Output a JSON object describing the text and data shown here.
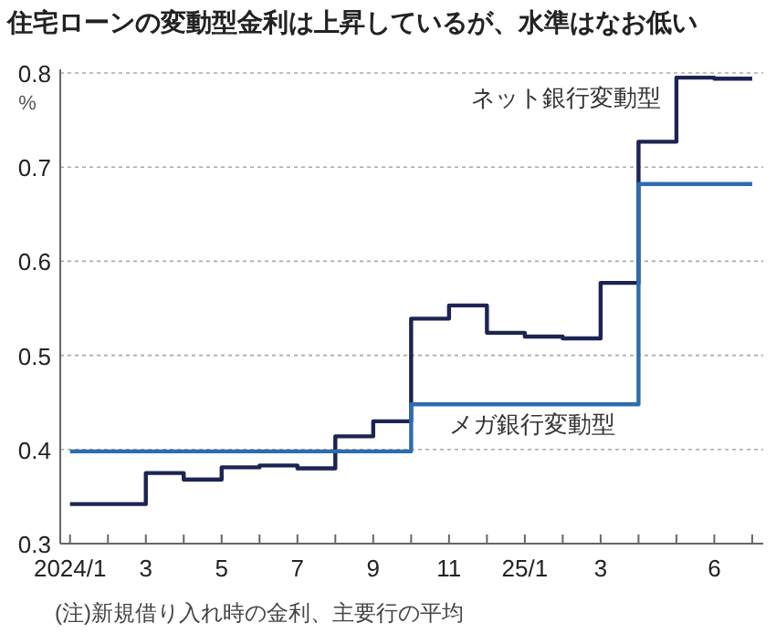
{
  "chart_data": {
    "type": "step",
    "title": "住宅ローンの変動型金利は上昇しているが、水準はなお低い",
    "ylabel": "%",
    "x": [
      "2024-01",
      "2024-02",
      "2024-03",
      "2024-04",
      "2024-05",
      "2024-06",
      "2024-07",
      "2024-08",
      "2024-09",
      "2024-10",
      "2024-11",
      "2024-12",
      "2025-01",
      "2025-02",
      "2025-03",
      "2025-04",
      "2025-05",
      "2025-06",
      "2025-07"
    ],
    "series": [
      {
        "name": "ネット銀行変動型",
        "color": "#1b2452",
        "values": [
          0.342,
          0.342,
          0.375,
          0.368,
          0.381,
          0.383,
          0.38,
          0.414,
          0.43,
          0.539,
          0.553,
          0.524,
          0.52,
          0.518,
          0.577,
          0.727,
          0.795,
          0.794,
          0.794
        ]
      },
      {
        "name": "メガ銀行変動型",
        "color": "#2d6cae",
        "values": [
          0.398,
          0.398,
          0.398,
          0.398,
          0.398,
          0.398,
          0.398,
          0.398,
          0.398,
          0.448,
          0.448,
          0.448,
          0.448,
          0.448,
          0.448,
          0.682,
          0.682,
          0.682,
          0.682
        ]
      }
    ],
    "xlim": [
      "2023-12-24",
      "2025-07-10"
    ],
    "xticks": [
      {
        "value": "2024-01",
        "label": "2024/1"
      },
      {
        "value": "2024-02",
        "label": null
      },
      {
        "value": "2024-03",
        "label": "3"
      },
      {
        "value": "2024-04",
        "label": null
      },
      {
        "value": "2024-05",
        "label": "5"
      },
      {
        "value": "2024-06",
        "label": null
      },
      {
        "value": "2024-07",
        "label": "7"
      },
      {
        "value": "2024-08",
        "label": null
      },
      {
        "value": "2024-09",
        "label": "9"
      },
      {
        "value": "2024-10",
        "label": null
      },
      {
        "value": "2024-11",
        "label": "11"
      },
      {
        "value": "2024-12",
        "label": null
      },
      {
        "value": "2025-01",
        "label": "25/1"
      },
      {
        "value": "2025-02",
        "label": null
      },
      {
        "value": "2025-03",
        "label": "3"
      },
      {
        "value": "2025-04",
        "label": null
      },
      {
        "value": "2025-05",
        "label": null
      },
      {
        "value": "2025-06",
        "label": "6"
      },
      {
        "value": "2025-07",
        "label": null
      }
    ],
    "ylim": [
      0.3,
      0.8
    ],
    "yticks": [
      0.3,
      0.4,
      0.5,
      0.6,
      0.7,
      0.8
    ],
    "grid": "y",
    "line_style": "solid",
    "marker": "none",
    "annotations": [
      "(注)新規借り入れ時の金利、主要行の平均"
    ]
  }
}
